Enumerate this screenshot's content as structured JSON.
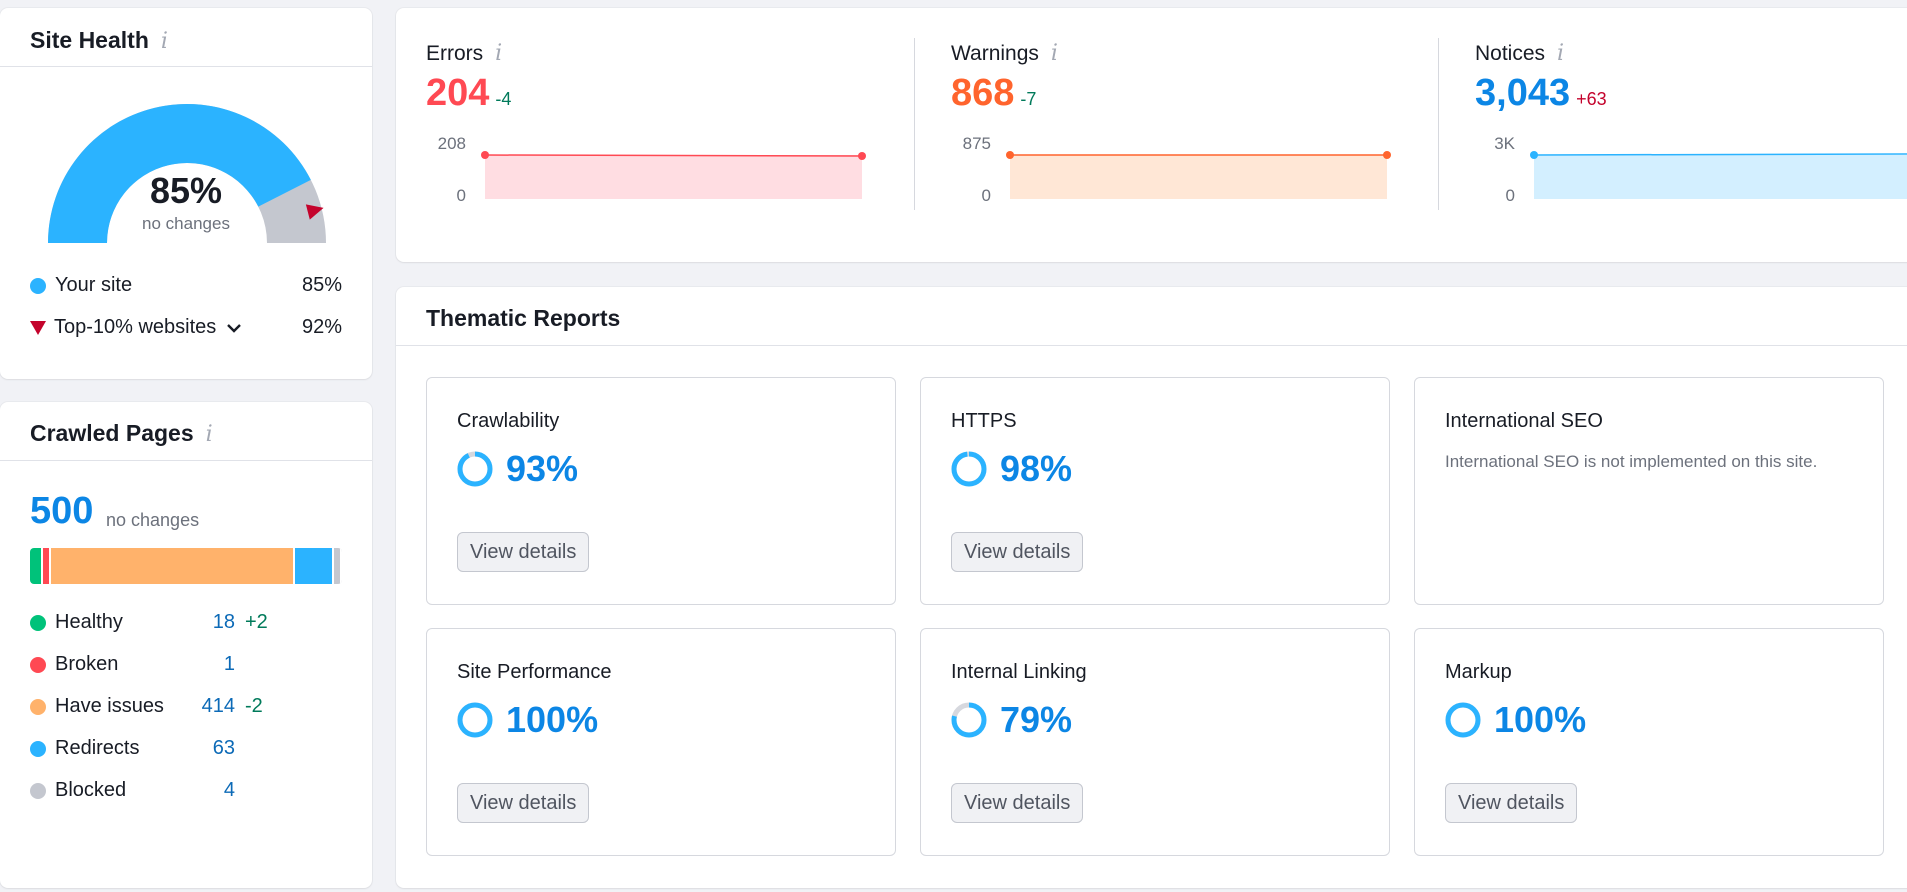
{
  "site_health": {
    "title": "Site Health",
    "info_icon": "i",
    "score": "85%",
    "score_fraction": 0.85,
    "top10_fraction": 0.92,
    "score_sub": "no changes",
    "legend": [
      {
        "label": "Your site",
        "value": "85%",
        "color": "#2bb3ff"
      },
      {
        "label": "Top-10% websites",
        "value": "92%",
        "color": "#c4032c"
      }
    ]
  },
  "crawled_pages": {
    "title": "Crawled Pages",
    "info_icon": "i",
    "count": "500",
    "count_sub": "no changes",
    "segments": [
      {
        "name": "Healthy",
        "value": 18,
        "color": "#00c27a"
      },
      {
        "name": "Broken",
        "value": 1,
        "color": "#ff4953"
      },
      {
        "name": "Have issues",
        "value": 414,
        "color": "#ffb26b"
      },
      {
        "name": "Redirects",
        "value": 63,
        "color": "#2bb3ff"
      },
      {
        "name": "Blocked",
        "value": 4,
        "color": "#c4c7cf"
      }
    ],
    "rows": [
      {
        "label": "Healthy",
        "count": "18",
        "delta": "+2",
        "color": "#00c27a"
      },
      {
        "label": "Broken",
        "count": "1",
        "delta": "",
        "color": "#ff4953"
      },
      {
        "label": "Have issues",
        "count": "414",
        "delta": "-2",
        "color": "#ffb26b"
      },
      {
        "label": "Redirects",
        "count": "63",
        "delta": "",
        "color": "#2bb3ff"
      },
      {
        "label": "Blocked",
        "count": "4",
        "delta": "",
        "color": "#c4c7cf"
      }
    ]
  },
  "issues": {
    "errors": {
      "label": "Errors",
      "value": "204",
      "delta": "-4",
      "y_top": "208",
      "y_bottom": "0",
      "color": "#ff4953",
      "fill": "#ffdde2",
      "delta_color": "#007a5a"
    },
    "warnings": {
      "label": "Warnings",
      "value": "868",
      "delta": "-7",
      "y_top": "875",
      "y_bottom": "0",
      "color": "#ff642d",
      "fill": "#ffe7d6",
      "delta_color": "#007a5a"
    },
    "notices": {
      "label": "Notices",
      "value": "3,043",
      "delta": "+63",
      "y_top": "3K",
      "y_bottom": "0",
      "color": "#0c86e5",
      "fill": "#d3efff",
      "delta_color": "#c4032c"
    },
    "info_icon": "i"
  },
  "thematic": {
    "title": "Thematic Reports",
    "tiles": [
      {
        "name": "Crawlability",
        "percent": "93%",
        "fraction": 0.93,
        "button": "View details"
      },
      {
        "name": "HTTPS",
        "percent": "98%",
        "fraction": 0.98,
        "button": "View details"
      },
      {
        "name": "International SEO",
        "note": "International SEO is not implemented on this site."
      },
      {
        "name": "Site Performance",
        "percent": "100%",
        "fraction": 1.0,
        "button": "View details"
      },
      {
        "name": "Internal Linking",
        "percent": "79%",
        "fraction": 0.79,
        "button": "View details"
      },
      {
        "name": "Markup",
        "percent": "100%",
        "fraction": 1.0,
        "button": "View details"
      }
    ]
  }
}
